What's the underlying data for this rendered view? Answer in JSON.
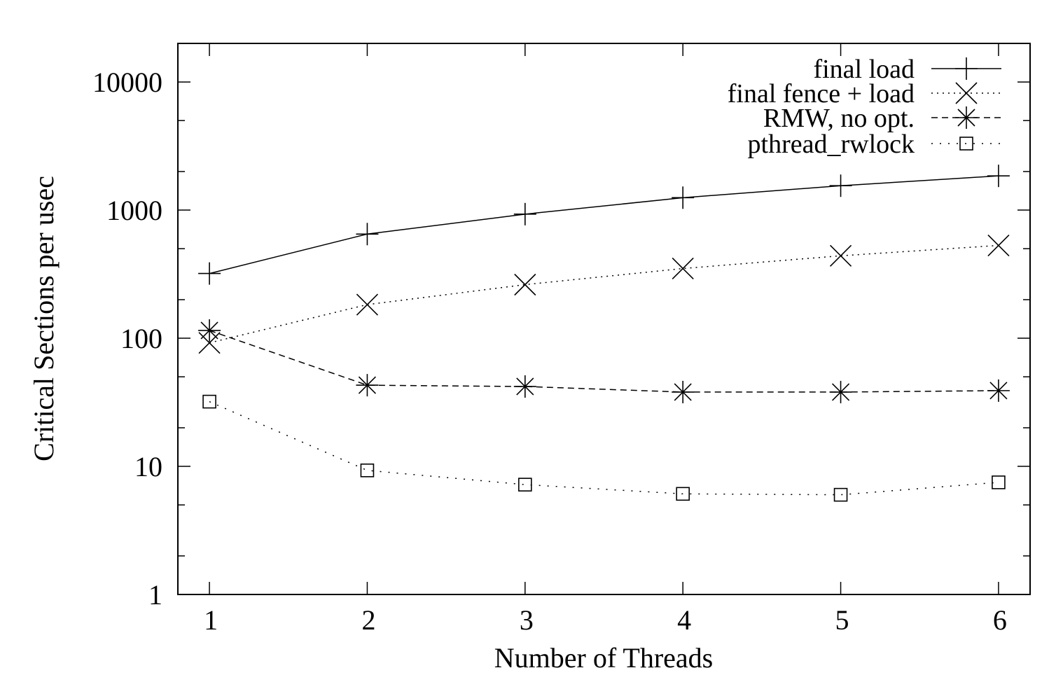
{
  "chart_data": {
    "type": "line",
    "title": "",
    "xlabel": "Number of Threads",
    "ylabel": "Critical Sections per usec",
    "x": [
      1,
      2,
      3,
      4,
      5,
      6
    ],
    "xticks": [
      "1",
      "2",
      "3",
      "4",
      "5",
      "6"
    ],
    "xlim": [
      0.8,
      6.2
    ],
    "yscale": "log",
    "ylim": [
      1,
      20000
    ],
    "yticks": [
      "1",
      "10",
      "100",
      "1000",
      "10000"
    ],
    "grid": false,
    "legend_position": "top-right",
    "series": [
      {
        "name": "final load",
        "marker": "plus",
        "line": "solid",
        "values": [
          320,
          650,
          930,
          1250,
          1550,
          1850
        ]
      },
      {
        "name": "final fence + load",
        "marker": "cross",
        "line": "dotted",
        "values": [
          92,
          183,
          262,
          350,
          440,
          530
        ]
      },
      {
        "name": "RMW, no opt.",
        "marker": "star",
        "line": "dashed",
        "values": [
          115,
          43,
          42,
          38,
          38,
          39
        ]
      },
      {
        "name": "pthread_rwlock",
        "marker": "square",
        "line": "sparse-dotted",
        "values": [
          32,
          9.3,
          7.2,
          6.1,
          6.0,
          7.5
        ]
      }
    ]
  }
}
